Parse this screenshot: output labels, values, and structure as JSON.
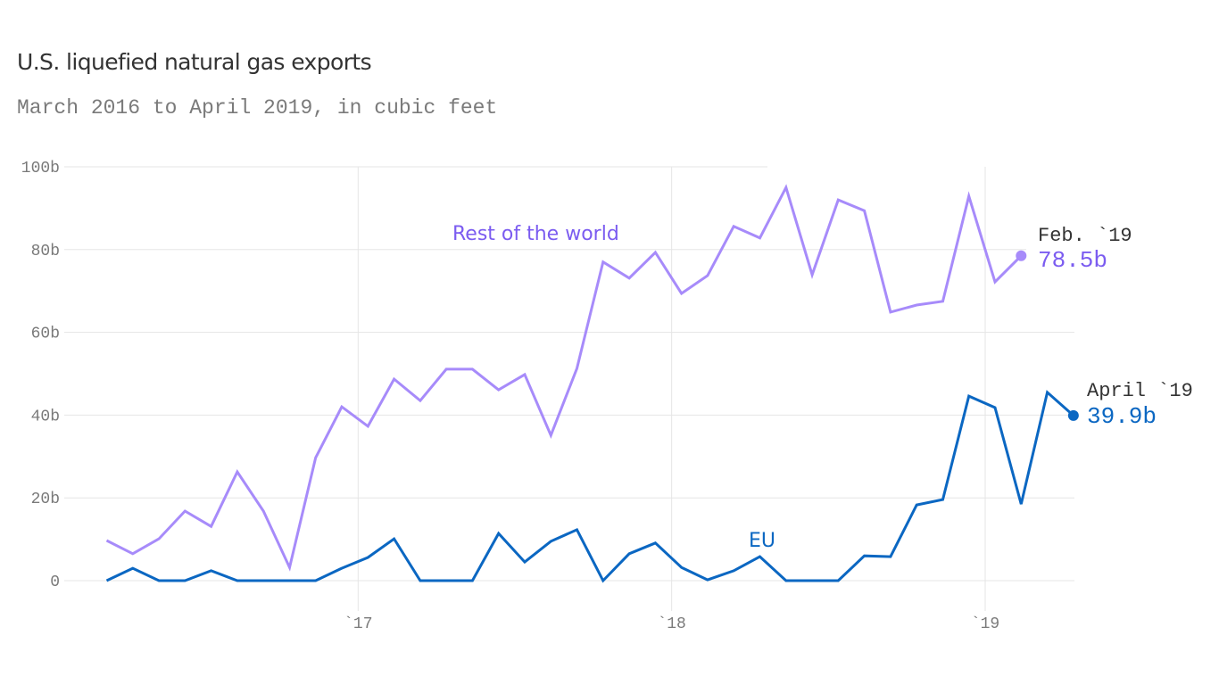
{
  "header": {
    "title": "U.S. liquefied natural gas exports",
    "subtitle": "March 2016 to April 2019, in cubic feet"
  },
  "colors": {
    "rest_line": "#a78bfa",
    "rest_label": "#7b5cf0",
    "eu": "#0b67c2",
    "grid": "#e5e5e5",
    "tick": "#7a7a7a",
    "annotation_date": "#333333"
  },
  "labels": {
    "rest": "Rest of the world",
    "eu": "EU",
    "rest_end_date": "Feb. `19",
    "rest_end_value": "78.5b",
    "eu_end_date": "April `19",
    "eu_end_value": "39.9b"
  },
  "chart_data": {
    "type": "line",
    "title": "U.S. liquefied natural gas exports",
    "subtitle": "March 2016 to April 2019, in cubic feet",
    "xlabel": "",
    "ylabel": "",
    "ylim": [
      0,
      100
    ],
    "yticks": [
      0,
      20,
      40,
      60,
      80,
      100
    ],
    "ytick_labels": [
      "0",
      "20b",
      "40b",
      "60b",
      "80b",
      "100b"
    ],
    "xtick_labels": [
      "`17",
      "`18",
      "`19"
    ],
    "xtick_months_index": [
      10,
      22,
      34
    ],
    "grid": true,
    "legend": "inline labels",
    "x": [
      "2016-03",
      "2016-04",
      "2016-05",
      "2016-06",
      "2016-07",
      "2016-08",
      "2016-09",
      "2016-10",
      "2016-11",
      "2016-12",
      "2017-01",
      "2017-02",
      "2017-03",
      "2017-04",
      "2017-05",
      "2017-06",
      "2017-07",
      "2017-08",
      "2017-09",
      "2017-10",
      "2017-11",
      "2017-12",
      "2018-01",
      "2018-02",
      "2018-03",
      "2018-04",
      "2018-05",
      "2018-06",
      "2018-07",
      "2018-08",
      "2018-09",
      "2018-10",
      "2018-11",
      "2018-12",
      "2019-01",
      "2019-02",
      "2019-03",
      "2019-04"
    ],
    "series": [
      {
        "name": "Rest of the world",
        "values": [
          9.7,
          6.5,
          10.1,
          16.8,
          13.1,
          26.3,
          16.8,
          3.2,
          29.7,
          42.0,
          37.3,
          48.7,
          43.5,
          51.1,
          51.1,
          46.1,
          49.8,
          35.1,
          51.3,
          77.0,
          73.1,
          79.3,
          69.4,
          73.7,
          85.6,
          82.8,
          95.0,
          73.9,
          92.0,
          89.4,
          64.9,
          66.6,
          67.5,
          92.9,
          72.2,
          78.5,
          null,
          null
        ]
      },
      {
        "name": "EU",
        "values": [
          0,
          3.0,
          0,
          0,
          2.4,
          0,
          0,
          0,
          0,
          3.0,
          5.6,
          10.1,
          0,
          0,
          0,
          11.4,
          4.5,
          9.5,
          12.3,
          0,
          6.5,
          9.1,
          3.2,
          0.2,
          2.4,
          5.8,
          0,
          0,
          0,
          6.0,
          5.8,
          18.3,
          19.6,
          44.6,
          41.8,
          18.5,
          45.5,
          39.9
        ]
      }
    ],
    "annotations": [
      {
        "series": "Rest of the world",
        "x": "2019-02",
        "date_label": "Feb. `19",
        "value_label": "78.5b"
      },
      {
        "series": "EU",
        "x": "2019-04",
        "date_label": "April `19",
        "value_label": "39.9b"
      }
    ]
  }
}
